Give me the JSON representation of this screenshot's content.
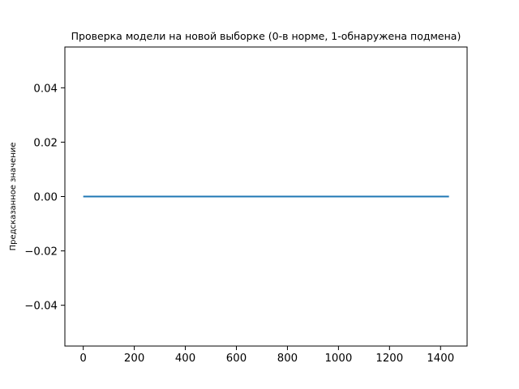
{
  "chart_data": {
    "type": "line",
    "title": "Проверка модели на новой выборке (0-в норме, 1-обнаружена подмена)",
    "xlabel": "",
    "ylabel": "Предсказанное значение",
    "xlim": [
      -72,
      1504
    ],
    "ylim": [
      -0.055,
      0.055
    ],
    "x_ticks": [
      0,
      200,
      400,
      600,
      800,
      1000,
      1200,
      1400
    ],
    "x_tick_labels": [
      "0",
      "200",
      "400",
      "600",
      "800",
      "1000",
      "1200",
      "1400"
    ],
    "y_ticks": [
      -0.04,
      -0.02,
      0.0,
      0.02,
      0.04
    ],
    "y_tick_labels": [
      "−0.04",
      "−0.02",
      "0.00",
      "0.02",
      "0.04"
    ],
    "grid": false,
    "legend": false,
    "series": [
      {
        "color": "#1f77b4",
        "x": [
          0,
          1433
        ],
        "y": [
          0,
          0
        ]
      }
    ]
  }
}
